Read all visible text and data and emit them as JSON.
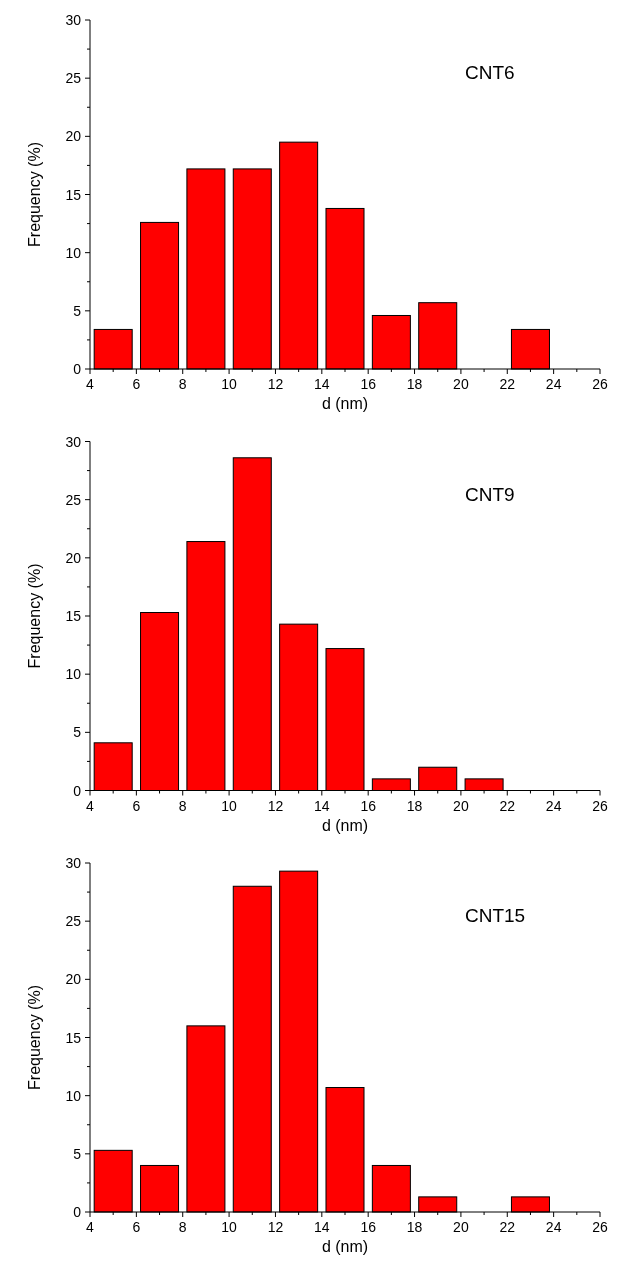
{
  "chart_data": [
    {
      "type": "histogram",
      "bins": [
        4,
        6,
        8,
        10,
        12,
        14,
        16,
        18,
        20,
        22,
        24
      ],
      "values": [
        3.4,
        12.6,
        17.2,
        17.2,
        19.5,
        13.8,
        4.6,
        5.7,
        0,
        3.4
      ],
      "color": "#ff0000",
      "xlim": [
        4,
        26
      ],
      "ylim": [
        0,
        30
      ],
      "xticks": [
        4,
        {
          "value": 5,
          "label": null
        },
        6,
        {
          "value": 7,
          "label": null
        },
        8,
        {
          "value": 9,
          "label": null
        },
        10,
        {
          "value": 11,
          "label": null
        },
        12,
        {
          "value": 13,
          "label": null
        },
        14,
        {
          "value": 15,
          "label": null
        },
        16,
        {
          "value": 17,
          "label": null
        },
        18,
        {
          "value": 19,
          "label": null
        },
        20,
        {
          "value": 21,
          "label": null
        },
        22,
        {
          "value": 23,
          "label": null
        },
        24,
        {
          "value": 25,
          "label": null
        },
        26
      ],
      "yticks": [
        0,
        {
          "value": 2.5,
          "label": null
        },
        5,
        {
          "value": 7.5,
          "label": null
        },
        10,
        {
          "value": 12.5,
          "label": null
        },
        15,
        {
          "value": 17.5,
          "label": null
        },
        20,
        {
          "value": 22.5,
          "label": null
        },
        25,
        {
          "value": 27.5,
          "label": null
        },
        30
      ],
      "xlabel": "d (nm)",
      "ylabel": "Frequency (%)",
      "annotations": [
        "CNT6"
      ]
    },
    {
      "type": "histogram",
      "bins": [
        4,
        6,
        8,
        10,
        12,
        14,
        16,
        18,
        20,
        22
      ],
      "values": [
        4.1,
        15.3,
        21.4,
        28.6,
        14.3,
        12.2,
        1.0,
        2.0,
        1.0
      ],
      "color": "#ff0000",
      "xlim": [
        4,
        26
      ],
      "ylim": [
        0,
        30
      ],
      "xticks": [
        4,
        {
          "value": 5,
          "label": null
        },
        6,
        {
          "value": 7,
          "label": null
        },
        8,
        {
          "value": 9,
          "label": null
        },
        10,
        {
          "value": 11,
          "label": null
        },
        12,
        {
          "value": 13,
          "label": null
        },
        14,
        {
          "value": 15,
          "label": null
        },
        16,
        {
          "value": 17,
          "label": null
        },
        18,
        {
          "value": 19,
          "label": null
        },
        20,
        {
          "value": 21,
          "label": null
        },
        22,
        {
          "value": 23,
          "label": null
        },
        24,
        {
          "value": 25,
          "label": null
        },
        26
      ],
      "yticks": [
        0,
        {
          "value": 2.5,
          "label": null
        },
        5,
        {
          "value": 7.5,
          "label": null
        },
        10,
        {
          "value": 12.5,
          "label": null
        },
        15,
        {
          "value": 17.5,
          "label": null
        },
        20,
        {
          "value": 22.5,
          "label": null
        },
        25,
        {
          "value": 27.5,
          "label": null
        },
        30
      ],
      "xlabel": "d (nm)",
      "ylabel": "Frequency (%)",
      "annotations": [
        "CNT9"
      ]
    },
    {
      "type": "histogram",
      "bins": [
        4,
        6,
        8,
        10,
        12,
        14,
        16,
        18,
        20,
        22,
        24
      ],
      "values": [
        5.3,
        4.0,
        16.0,
        28.0,
        29.3,
        10.7,
        4.0,
        1.3,
        0,
        1.3
      ],
      "color": "#ff0000",
      "xlim": [
        4,
        26
      ],
      "ylim": [
        0,
        30
      ],
      "xticks": [
        4,
        {
          "value": 5,
          "label": null
        },
        6,
        {
          "value": 7,
          "label": null
        },
        8,
        {
          "value": 9,
          "label": null
        },
        10,
        {
          "value": 11,
          "label": null
        },
        12,
        {
          "value": 13,
          "label": null
        },
        14,
        {
          "value": 15,
          "label": null
        },
        16,
        {
          "value": 17,
          "label": null
        },
        18,
        {
          "value": 19,
          "label": null
        },
        20,
        {
          "value": 21,
          "label": null
        },
        22,
        {
          "value": 23,
          "label": null
        },
        24,
        {
          "value": 25,
          "label": null
        },
        26
      ],
      "yticks": [
        0,
        {
          "value": 2.5,
          "label": null
        },
        5,
        {
          "value": 7.5,
          "label": null
        },
        10,
        {
          "value": 12.5,
          "label": null
        },
        15,
        {
          "value": 17.5,
          "label": null
        },
        20,
        {
          "value": 22.5,
          "label": null
        },
        25,
        {
          "value": 27.5,
          "label": null
        },
        30
      ],
      "xlabel": "d (nm)",
      "ylabel": "Frequency (%)",
      "annotations": [
        "CNT15"
      ]
    }
  ]
}
